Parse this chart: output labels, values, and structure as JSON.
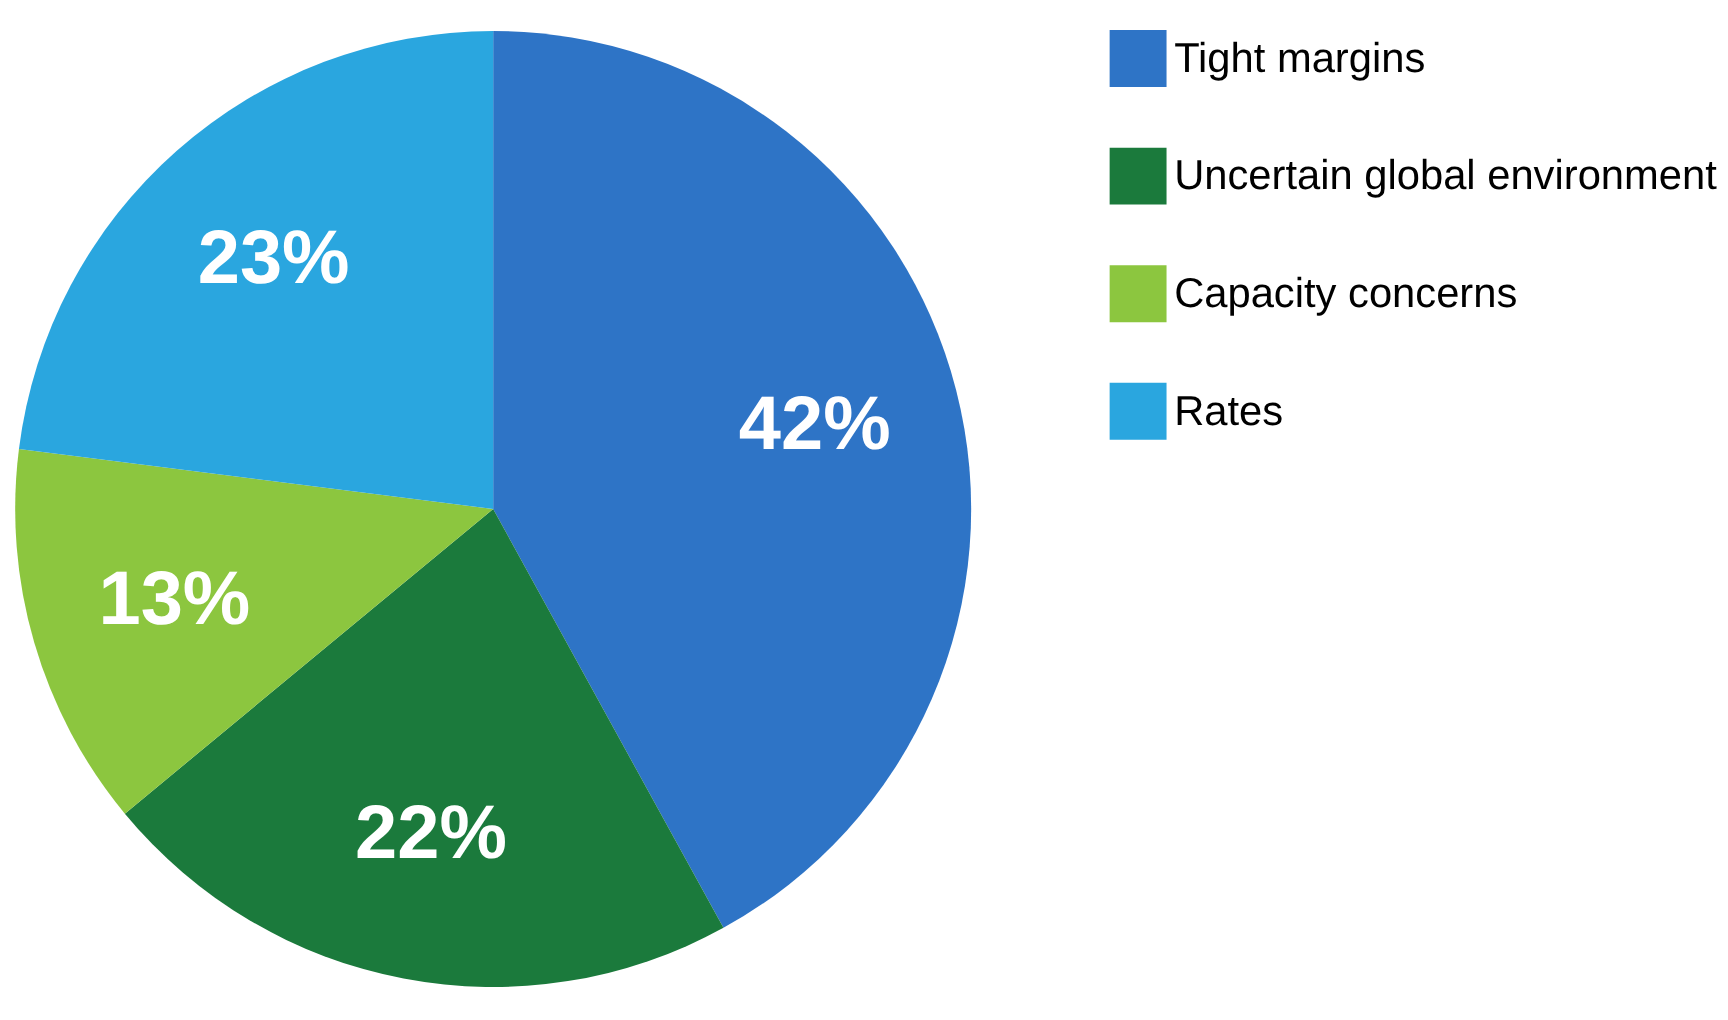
{
  "chart_data": {
    "type": "pie",
    "categories": [
      "Tight margins",
      "Uncertain global environment",
      "Capacity concerns",
      "Rates"
    ],
    "values": [
      42,
      22,
      13,
      23
    ],
    "colors": [
      "#2e74c6",
      "#1b7a3c",
      "#8cc63f",
      "#2aa6df"
    ],
    "value_labels": [
      "42%",
      "22%",
      "13%",
      "23%"
    ],
    "legend": "right"
  }
}
